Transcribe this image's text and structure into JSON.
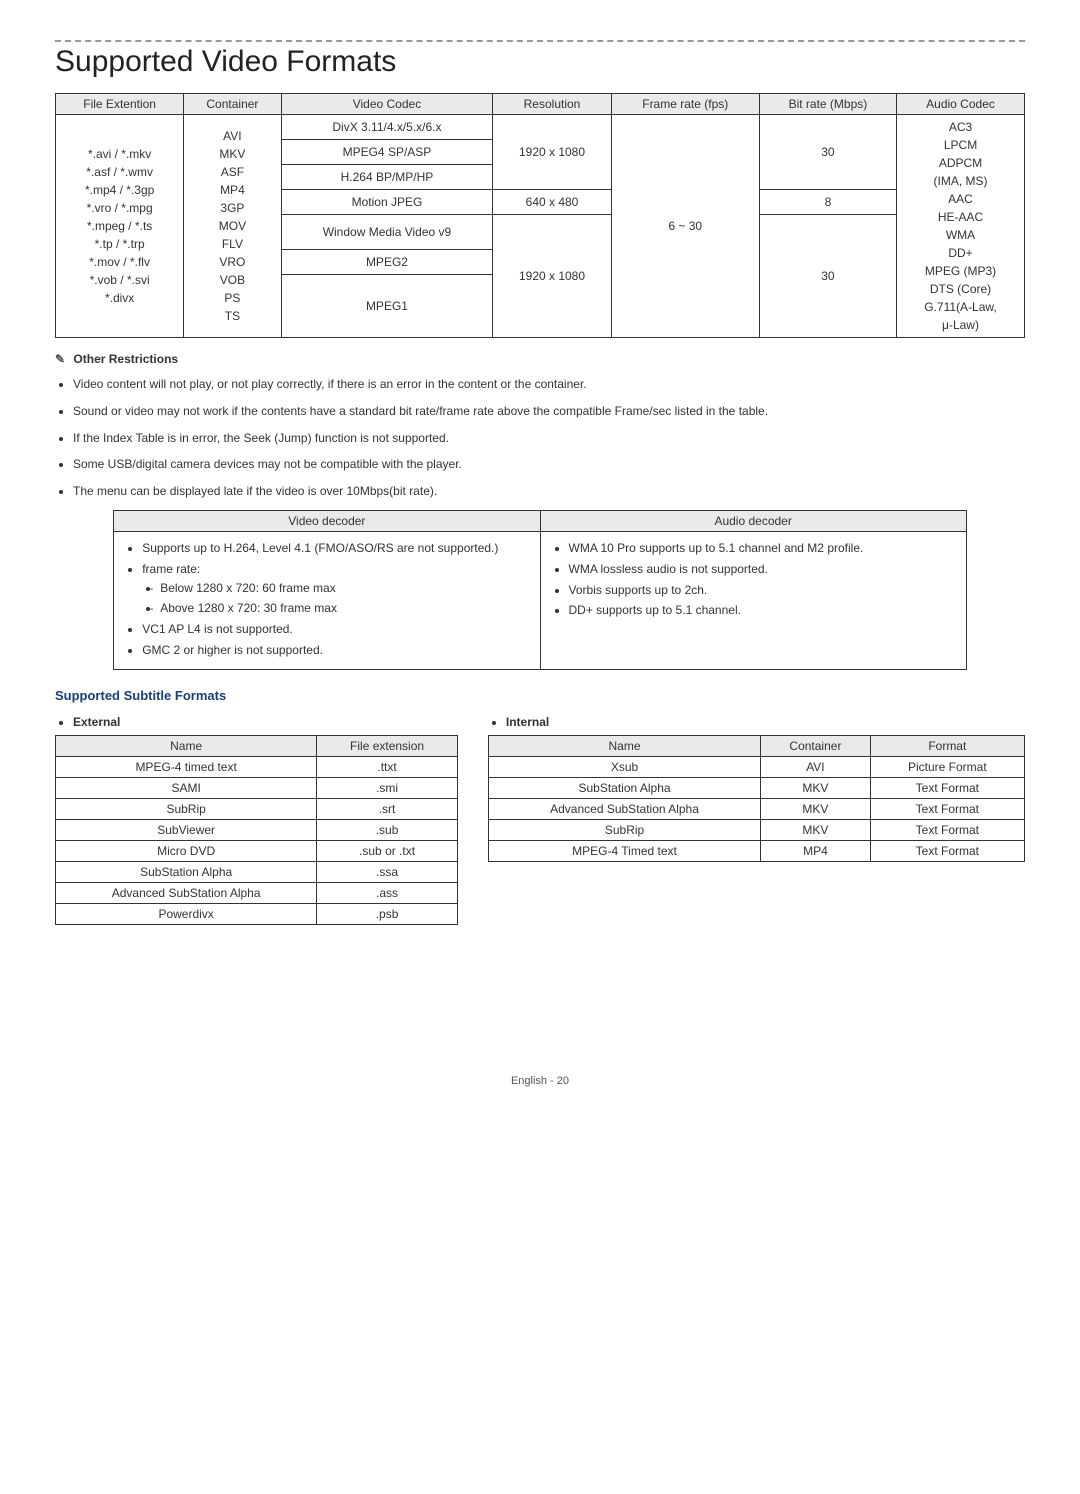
{
  "title": "Supported Video Formats",
  "mainTable": {
    "headers": [
      "File Extention",
      "Container",
      "Video Codec",
      "Resolution",
      "Frame rate (fps)",
      "Bit rate (Mbps)",
      "Audio Codec"
    ],
    "fileExt": "*.avi / *.mkv\n*.asf / *.wmv\n*.mp4 / *.3gp\n*.vro / *.mpg\n*.mpeg / *.ts\n*.tp / *.trp\n*.mov / *.flv\n*.vob / *.svi\n*.divx",
    "container": "AVI\nMKV\nASF\nMP4\n3GP\nMOV\nFLV\nVRO\nVOB\nPS\nTS",
    "codec_r1": "DivX 3.11/4.x/5.x/6.x",
    "codec_r2": "MPEG4 SP/ASP",
    "codec_r3": "H.264 BP/MP/HP",
    "codec_r4": "Motion JPEG",
    "codec_r5": "Window Media Video v9",
    "codec_r6": "MPEG2",
    "codec_r7": "MPEG1",
    "res_a": "1920 x 1080",
    "res_b": "640 x 480",
    "res_c": "1920 x 1080",
    "fps": "6 ~ 30",
    "br_a": "30",
    "br_b": "8",
    "br_c": "30",
    "audio": "AC3\nLPCM\nADPCM\n(IMA, MS)\nAAC\nHE-AAC\nWMA\nDD+\nMPEG (MP3)\nDTS (Core)\nG.711(A-Law,\nμ-Law)"
  },
  "otherRestrictionsLabel": "Other Restrictions",
  "restrictions": [
    "Video content will not play, or not play correctly, if there is an error in the content or the container.",
    "Sound or video may not work if the contents have a standard bit rate/frame rate above the compatible Frame/sec listed in the table.",
    "If the Index Table is in error, the Seek (Jump) function is not supported.",
    "Some USB/digital camera devices may not be compatible with the player.",
    "The menu can be displayed late if the video is over 10Mbps(bit rate)."
  ],
  "decoder": {
    "headers": [
      "Video decoder",
      "Audio decoder"
    ],
    "video": {
      "i1": "Supports up to H.264, Level 4.1 (FMO/ASO/RS are not supported.)",
      "i2": "frame rate:",
      "i2a": "Below 1280 x 720: 60 frame max",
      "i2b": "Above 1280 x 720: 30 frame max",
      "i3": "VC1 AP L4 is not supported.",
      "i4": "GMC 2 or higher is not supported."
    },
    "audio": {
      "a1": "WMA 10 Pro supports up to 5.1 channel and M2 profile.",
      "a2": "WMA lossless audio is not supported.",
      "a3": "Vorbis supports up to 2ch.",
      "a4": "DD+ supports up to 5.1 channel."
    }
  },
  "subtitleHeading": "Supported Subtitle Formats",
  "external": {
    "label": "External",
    "headers": [
      "Name",
      "File extension"
    ],
    "rows": [
      [
        "MPEG-4 timed text",
        ".ttxt"
      ],
      [
        "SAMI",
        ".smi"
      ],
      [
        "SubRip",
        ".srt"
      ],
      [
        "SubViewer",
        ".sub"
      ],
      [
        "Micro DVD",
        ".sub or .txt"
      ],
      [
        "SubStation Alpha",
        ".ssa"
      ],
      [
        "Advanced SubStation Alpha",
        ".ass"
      ],
      [
        "Powerdivx",
        ".psb"
      ]
    ]
  },
  "internal": {
    "label": "Internal",
    "headers": [
      "Name",
      "Container",
      "Format"
    ],
    "rows": [
      [
        "Xsub",
        "AVI",
        "Picture Format"
      ],
      [
        "SubStation Alpha",
        "MKV",
        "Text Format"
      ],
      [
        "Advanced SubStation Alpha",
        "MKV",
        "Text Format"
      ],
      [
        "SubRip",
        "MKV",
        "Text Format"
      ],
      [
        "MPEG-4 Timed text",
        "MP4",
        "Text Format"
      ]
    ]
  },
  "footer": "English - 20"
}
